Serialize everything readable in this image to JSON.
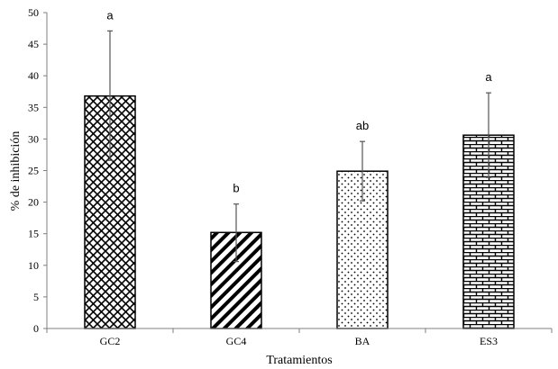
{
  "chart_data": {
    "type": "bar",
    "title": "",
    "xlabel": "Tratamientos",
    "ylabel": "% de inhibición",
    "ylim": [
      0,
      50
    ],
    "yticks": [
      0,
      5,
      10,
      15,
      20,
      25,
      30,
      35,
      40,
      45,
      50
    ],
    "categories": [
      "GC2",
      "GC4",
      "BA",
      "ES3"
    ],
    "values": [
      36.8,
      15.2,
      24.9,
      30.6
    ],
    "error_upper": [
      47.1,
      19.7,
      29.6,
      37.3
    ],
    "error_lower": [
      26.6,
      10.6,
      20.2,
      23.9
    ],
    "significance_labels": [
      "a",
      "b",
      "ab",
      "a"
    ],
    "patterns": [
      "crosshatch",
      "diagonal-stripes",
      "dots",
      "bricks"
    ],
    "bar_color": "#000000",
    "grid": false,
    "legend": "none"
  }
}
